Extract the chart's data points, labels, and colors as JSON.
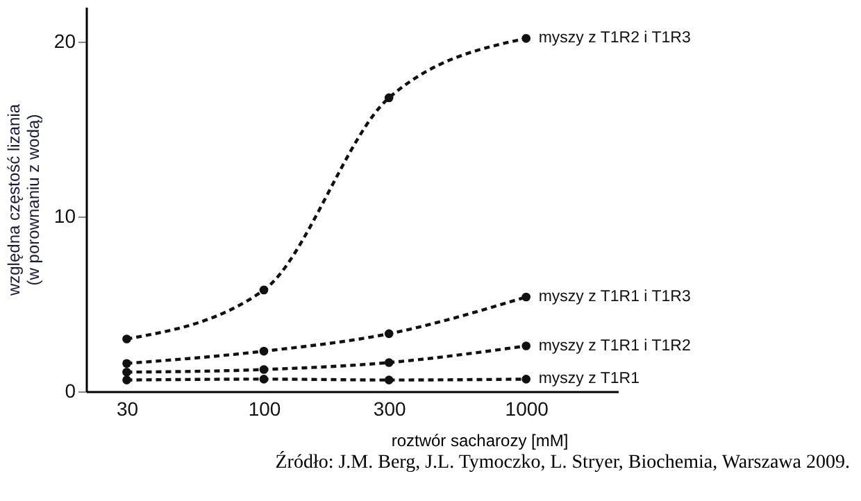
{
  "chart_data": {
    "type": "line",
    "x": [
      30,
      100,
      300,
      1000
    ],
    "series": [
      {
        "name": "myszy z T1R2 i T1R3",
        "color": "#111111",
        "values": [
          3.0,
          5.8,
          16.8,
          20.2
        ]
      },
      {
        "name": "myszy z T1R1 i T1R3",
        "color": "#111111",
        "values": [
          1.6,
          2.3,
          3.3,
          5.4
        ]
      },
      {
        "name": "myszy z T1R1 i T1R2",
        "color": "#111111",
        "values": [
          1.1,
          1.25,
          1.65,
          2.6
        ]
      },
      {
        "name": "myszy z T1R1",
        "color": "#111111",
        "values": [
          0.65,
          0.7,
          0.65,
          0.7
        ]
      }
    ],
    "xlabel": "roztwór sacharozy [mM]",
    "ylabel": "względna częstość lizania\n(w porownaniu z wodą)",
    "log": "x",
    "xlim": [
      21,
      2240
    ],
    "xticks": [
      30,
      100,
      300,
      1000
    ],
    "ylim": [
      0,
      22
    ],
    "yticks": [
      0,
      10,
      20
    ],
    "grid": false,
    "marker": "circle",
    "line_style": "dashed",
    "annotations": [
      "Źródło: J.M. Berg, J.L. Tymoczko, L. Stryer, Biochemia, Warszawa 2009."
    ]
  }
}
